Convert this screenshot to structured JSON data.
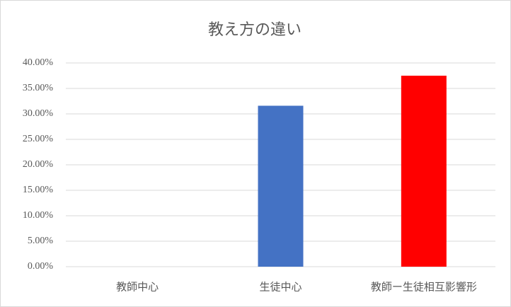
{
  "chart_data": {
    "type": "bar",
    "title": "教え方の違い",
    "categories": [
      "教師中心",
      "生徒中心",
      "教師ー生徒相互影響形"
    ],
    "values": [
      0,
      31.6,
      37.5
    ],
    "colors": [
      "#4472c4",
      "#4472c4",
      "#ff0000"
    ],
    "ylim": [
      0,
      40
    ],
    "yticks": [
      {
        "value": 0,
        "label": "0.00%"
      },
      {
        "value": 5,
        "label": "5.00%"
      },
      {
        "value": 10,
        "label": "10.00%"
      },
      {
        "value": 15,
        "label": "15.00%"
      },
      {
        "value": 20,
        "label": "20.00%"
      },
      {
        "value": 25,
        "label": "25.00%"
      },
      {
        "value": 30,
        "label": "30.00%"
      },
      {
        "value": 35,
        "label": "35.00%"
      },
      {
        "value": 40,
        "label": "40.00%"
      }
    ],
    "grid": true
  }
}
